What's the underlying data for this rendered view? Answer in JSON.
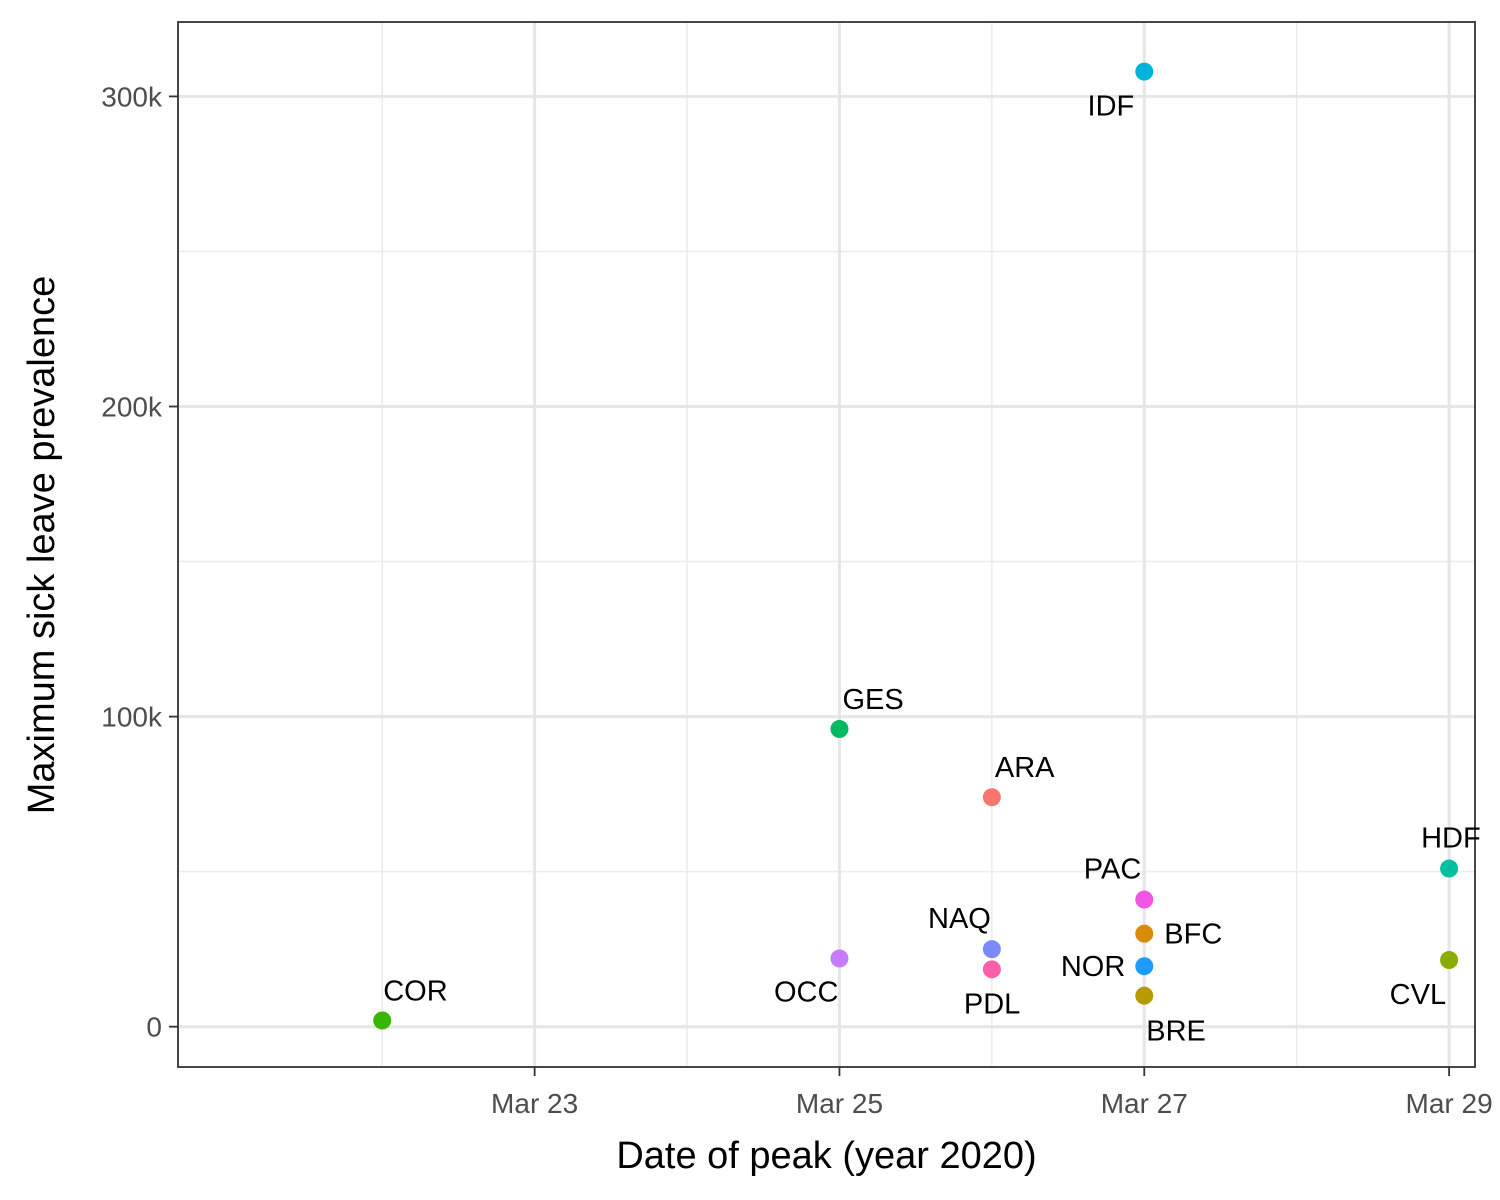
{
  "chart_data": {
    "type": "scatter",
    "title": "",
    "xlabel": "Date of peak (year 2020)",
    "ylabel": "Maximum sick leave prevalence",
    "x_axis_type": "date",
    "xlim": [
      "2020-03-21",
      "2020-03-29"
    ],
    "ylim": [
      -13000,
      324000
    ],
    "x_ticks": [
      {
        "date": "2020-03-23",
        "label": "Mar 23"
      },
      {
        "date": "2020-03-25",
        "label": "Mar 25"
      },
      {
        "date": "2020-03-27",
        "label": "Mar 27"
      },
      {
        "date": "2020-03-29",
        "label": "Mar 29"
      }
    ],
    "x_minor_ticks": [
      "2020-03-22",
      "2020-03-24",
      "2020-03-26",
      "2020-03-28"
    ],
    "y_ticks": [
      {
        "value": 0,
        "label": "0"
      },
      {
        "value": 100000,
        "label": "100k"
      },
      {
        "value": 200000,
        "label": "200k"
      },
      {
        "value": 300000,
        "label": "300k"
      }
    ],
    "y_minor_ticks": [
      50000,
      150000,
      250000
    ],
    "grid": true,
    "legend": "none",
    "points": [
      {
        "label": "COR",
        "date": "2020-03-22",
        "value": 2000,
        "color": "#39B600"
      },
      {
        "label": "GES",
        "date": "2020-03-25",
        "value": 96000,
        "color": "#00BA62"
      },
      {
        "label": "OCC",
        "date": "2020-03-25",
        "value": 22000,
        "color": "#C77CFF"
      },
      {
        "label": "ARA",
        "date": "2020-03-26",
        "value": 74000,
        "color": "#F8766D"
      },
      {
        "label": "NAQ",
        "date": "2020-03-26",
        "value": 25000,
        "color": "#7B89FF"
      },
      {
        "label": "PDL",
        "date": "2020-03-26",
        "value": 18500,
        "color": "#FF5FA8"
      },
      {
        "label": "IDF",
        "date": "2020-03-27",
        "value": 308000,
        "color": "#00B3DD"
      },
      {
        "label": "PAC",
        "date": "2020-03-27",
        "value": 41000,
        "color": "#F255E6"
      },
      {
        "label": "BFC",
        "date": "2020-03-27",
        "value": 30000,
        "color": "#D98A06"
      },
      {
        "label": "NOR",
        "date": "2020-03-27",
        "value": 19500,
        "color": "#1E9BFF"
      },
      {
        "label": "BRE",
        "date": "2020-03-27",
        "value": 10000,
        "color": "#B79A00"
      },
      {
        "label": "HDF",
        "date": "2020-03-29",
        "value": 51000,
        "color": "#00BFA0"
      },
      {
        "label": "CVL",
        "date": "2020-03-29",
        "value": 21500,
        "color": "#8AAB00"
      }
    ]
  }
}
